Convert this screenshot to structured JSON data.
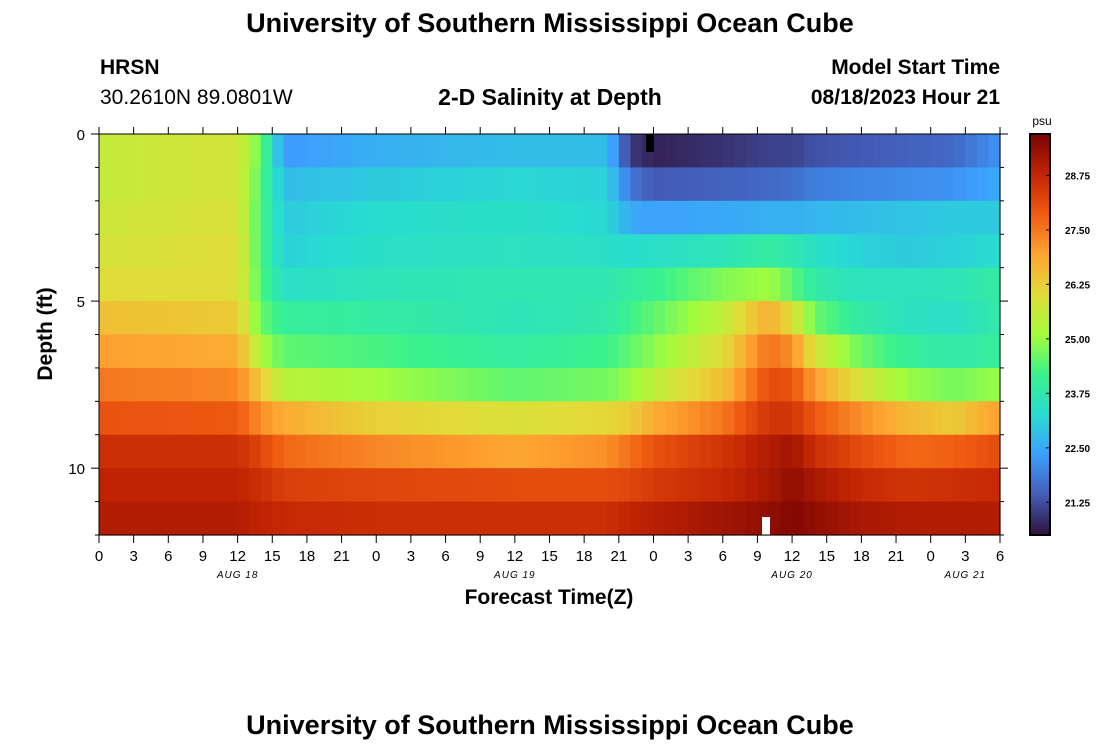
{
  "header": {
    "title": "University of Southern Mississippi Ocean Cube",
    "station": "HRSN",
    "coords": "30.2610N  89.0801W",
    "subtitle": "2-D Salinity at Depth",
    "model_start_label": "Model Start Time",
    "model_start_value": "08/18/2023 Hour 21"
  },
  "footer": {
    "title": "University of Southern Mississippi Ocean Cube"
  },
  "chart_data": {
    "type": "heatmap",
    "title": "2-D Salinity at Depth",
    "xlabel": "Forecast Time(Z)",
    "ylabel": "Depth (ft)",
    "x_hours_range": [
      0,
      78
    ],
    "y_depth_range": [
      0,
      12
    ],
    "y_ticks": [
      0,
      5,
      10
    ],
    "x_tick_labels": [
      "0",
      "3",
      "6",
      "9",
      "12",
      "15",
      "18",
      "21",
      "0",
      "3",
      "6",
      "9",
      "12",
      "15",
      "18",
      "21",
      "0",
      "3",
      "6",
      "9",
      "12",
      "15",
      "18",
      "21",
      "0",
      "3",
      "6"
    ],
    "date_labels": [
      {
        "text": "AUG 18",
        "hour": 12
      },
      {
        "text": "AUG 19",
        "hour": 36
      },
      {
        "text": "AUG 20",
        "hour": 60
      },
      {
        "text": "AUG 21",
        "hour": 75
      }
    ],
    "colorbar": {
      "unit": "psu",
      "min": 20.5,
      "max": 29.7,
      "ticks": [
        "28.75",
        "27.50",
        "26.25",
        "25.00",
        "23.75",
        "22.50",
        "21.25"
      ]
    },
    "depth_layers_ft": [
      0.5,
      1.5,
      2.5,
      3.5,
      4.5,
      5.5,
      6.5,
      7.5,
      8.5,
      9.5,
      10.5,
      11.5
    ],
    "profile_times_h": [
      0,
      12,
      14,
      16,
      24,
      36,
      44,
      46,
      48,
      54,
      58,
      60,
      62,
      66,
      70,
      74,
      78
    ],
    "salinity_psu": [
      [
        25.6,
        25.8,
        24.6,
        22.3,
        22.6,
        22.8,
        22.8,
        21.0,
        20.7,
        20.9,
        21.1,
        21.1,
        21.3,
        21.4,
        21.5,
        21.6,
        22.2
      ],
      [
        25.6,
        25.8,
        24.4,
        22.8,
        23.0,
        23.2,
        23.1,
        21.8,
        21.4,
        21.5,
        21.6,
        21.7,
        21.9,
        22.0,
        22.1,
        22.2,
        22.5
      ],
      [
        25.7,
        25.9,
        24.3,
        23.0,
        23.3,
        23.4,
        23.2,
        22.5,
        22.4,
        22.5,
        22.6,
        22.6,
        22.7,
        22.8,
        22.9,
        23.0,
        23.0
      ],
      [
        25.8,
        26.0,
        24.3,
        23.1,
        23.4,
        23.5,
        23.4,
        23.3,
        23.4,
        23.6,
        23.9,
        23.7,
        23.4,
        23.1,
        23.0,
        23.1,
        23.3
      ],
      [
        26.0,
        26.0,
        24.4,
        23.4,
        23.6,
        23.7,
        23.7,
        23.9,
        24.1,
        24.8,
        25.1,
        24.5,
        23.8,
        23.5,
        23.5,
        23.6,
        23.9
      ],
      [
        26.5,
        26.3,
        24.6,
        24.0,
        23.9,
        23.6,
        23.8,
        24.2,
        24.5,
        25.5,
        26.8,
        26.0,
        24.6,
        23.8,
        23.5,
        23.4,
        23.8
      ],
      [
        27.0,
        26.8,
        25.2,
        24.5,
        24.3,
        23.9,
        24.2,
        24.5,
        24.9,
        26.0,
        27.6,
        27.2,
        25.8,
        24.6,
        24.0,
        23.8,
        24.0
      ],
      [
        27.5,
        27.3,
        26.3,
        25.4,
        25.1,
        24.5,
        24.7,
        25.0,
        25.5,
        26.5,
        28.1,
        28.0,
        27.0,
        25.8,
        25.0,
        24.7,
        25.0
      ],
      [
        28.0,
        27.9,
        27.2,
        26.8,
        26.2,
        25.9,
        26.1,
        26.3,
        26.8,
        27.5,
        28.5,
        28.5,
        27.9,
        27.2,
        26.6,
        26.3,
        27.0
      ],
      [
        28.6,
        28.6,
        28.2,
        27.7,
        27.3,
        26.9,
        27.2,
        27.6,
        28.0,
        28.5,
        29.0,
        29.2,
        28.6,
        28.1,
        27.7,
        27.8,
        28.1
      ],
      [
        28.8,
        28.8,
        28.6,
        28.3,
        28.2,
        28.1,
        28.1,
        28.2,
        28.4,
        28.7,
        29.1,
        29.4,
        29.1,
        28.7,
        28.5,
        28.6,
        28.7
      ],
      [
        29.0,
        29.0,
        28.8,
        28.7,
        28.6,
        28.6,
        28.6,
        28.8,
        28.9,
        29.2,
        29.4,
        29.6,
        29.4,
        29.1,
        29.0,
        29.0,
        29.0
      ]
    ]
  }
}
